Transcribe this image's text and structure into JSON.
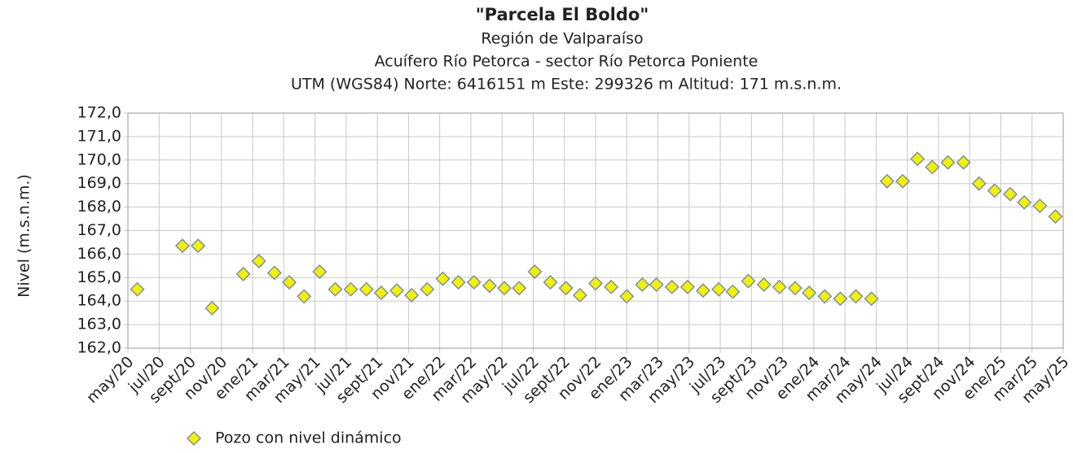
{
  "chart_data": {
    "type": "scatter",
    "title": "\"Parcela El Boldo\"",
    "subtitle": [
      "Región de Valparaíso",
      "Acuífero Río Petorca - sector Río Petorca Poniente",
      "UTM (WGS84) Norte: 6416151 m  Este: 299326 m    Altitud: 171 m.s.n.m."
    ],
    "y_label": "Nivel (m.s.n.m.)",
    "xlim": [
      0,
      60
    ],
    "xticks": [
      {
        "value": 0,
        "label": "may/20"
      },
      {
        "value": 2,
        "label": "jul/20"
      },
      {
        "value": 4,
        "label": "sept/20"
      },
      {
        "value": 6,
        "label": "nov/20"
      },
      {
        "value": 8,
        "label": "ene/21"
      },
      {
        "value": 10,
        "label": "mar/21"
      },
      {
        "value": 12,
        "label": "may/21"
      },
      {
        "value": 14,
        "label": "jul/21"
      },
      {
        "value": 16,
        "label": "sept/21"
      },
      {
        "value": 18,
        "label": "nov/21"
      },
      {
        "value": 20,
        "label": "ene/22"
      },
      {
        "value": 22,
        "label": "mar/22"
      },
      {
        "value": 24,
        "label": "may/22"
      },
      {
        "value": 26,
        "label": "jul/22"
      },
      {
        "value": 28,
        "label": "sept/22"
      },
      {
        "value": 30,
        "label": "nov/22"
      },
      {
        "value": 32,
        "label": "ene/23"
      },
      {
        "value": 34,
        "label": "mar/23"
      },
      {
        "value": 36,
        "label": "may/23"
      },
      {
        "value": 38,
        "label": "jul/23"
      },
      {
        "value": 40,
        "label": "sept/23"
      },
      {
        "value": 42,
        "label": "nov/23"
      },
      {
        "value": 44,
        "label": "ene/24"
      },
      {
        "value": 46,
        "label": "mar/24"
      },
      {
        "value": 48,
        "label": "may/24"
      },
      {
        "value": 50,
        "label": "jul/24"
      },
      {
        "value": 52,
        "label": "sept/24"
      },
      {
        "value": 54,
        "label": "nov/24"
      },
      {
        "value": 56,
        "label": "ene/25"
      },
      {
        "value": 58,
        "label": "mar/25"
      },
      {
        "value": 60,
        "label": "may/25"
      }
    ],
    "ylim": [
      162,
      172
    ],
    "yticks": [
      {
        "value": 162,
        "label": "162,0"
      },
      {
        "value": 163,
        "label": "163,0"
      },
      {
        "value": 164,
        "label": "164,0"
      },
      {
        "value": 165,
        "label": "165,0"
      },
      {
        "value": 166,
        "label": "166,0"
      },
      {
        "value": 167,
        "label": "167,0"
      },
      {
        "value": 168,
        "label": "168,0"
      },
      {
        "value": 169,
        "label": "169,0"
      },
      {
        "value": 170,
        "label": "170,0"
      },
      {
        "value": 171,
        "label": "171,0"
      },
      {
        "value": 172,
        "label": "172,0"
      }
    ],
    "grid": true,
    "legend": "bottom-left",
    "series": [
      {
        "name": "Pozo con nivel dinámico",
        "color": "#f2f200",
        "edge_color": "#7f8fa8",
        "x": [
          0.6,
          3.5,
          4.5,
          5.4,
          7.4,
          8.4,
          9.4,
          10.35,
          11.3,
          12.3,
          13.3,
          14.3,
          15.3,
          16.25,
          17.25,
          18.2,
          19.2,
          20.2,
          21.2,
          22.2,
          23.2,
          24.15,
          25.1,
          26.1,
          27.1,
          28.1,
          29,
          30,
          31,
          32,
          33,
          33.9,
          34.9,
          35.9,
          36.9,
          37.9,
          38.8,
          39.8,
          40.8,
          41.8,
          42.8,
          43.7,
          44.7,
          45.7,
          46.7,
          47.7,
          48.7,
          49.7,
          50.65,
          51.6,
          52.6,
          53.6,
          54.6,
          55.6,
          56.6,
          57.5,
          58.5,
          59.5
        ],
        "values": [
          164.5,
          166.35,
          166.35,
          163.7,
          165.15,
          165.7,
          165.2,
          164.8,
          164.2,
          165.25,
          164.5,
          164.5,
          164.5,
          164.35,
          164.45,
          164.25,
          164.5,
          164.95,
          164.8,
          164.8,
          164.65,
          164.55,
          164.55,
          165.25,
          164.8,
          164.55,
          164.25,
          164.75,
          164.6,
          164.2,
          164.7,
          164.7,
          164.6,
          164.6,
          164.45,
          164.5,
          164.4,
          164.85,
          164.7,
          164.6,
          164.55,
          164.35,
          164.2,
          164.1,
          164.2,
          164.1,
          169.1,
          169.1,
          170.05,
          169.7,
          169.9,
          169.9,
          169.0,
          168.7,
          168.55,
          168.2,
          168.05,
          167.6
        ]
      }
    ]
  }
}
